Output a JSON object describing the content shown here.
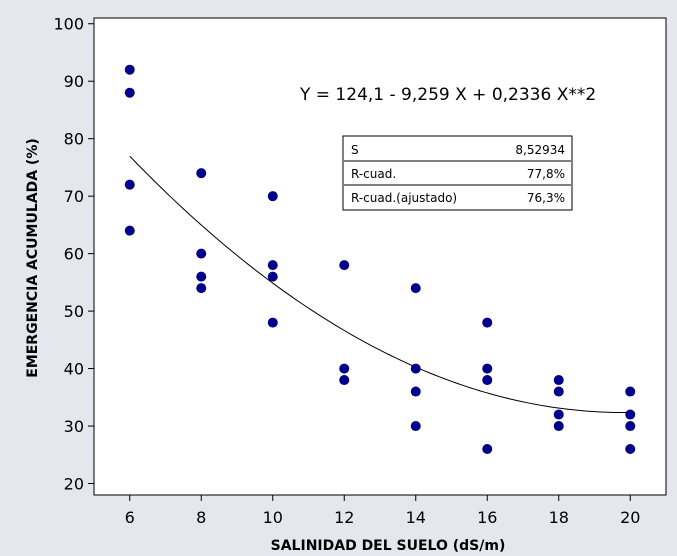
{
  "chart_data": {
    "type": "scatter",
    "xlabel": "SALINIDAD DEL SUELO (dS/m)",
    "ylabel": "EMERGENCIA ACUMULADA  (%)",
    "xlim": [
      5,
      21
    ],
    "ylim": [
      18,
      101
    ],
    "x_ticks": [
      6,
      8,
      10,
      12,
      14,
      16,
      18,
      20
    ],
    "y_ticks": [
      20,
      30,
      40,
      50,
      60,
      70,
      80,
      90,
      100
    ],
    "grid": false,
    "marker_color": "#00008B",
    "fit_line_color": "#000000",
    "points": [
      {
        "x": 6,
        "y": 92
      },
      {
        "x": 6,
        "y": 88
      },
      {
        "x": 6,
        "y": 72
      },
      {
        "x": 6,
        "y": 64
      },
      {
        "x": 8,
        "y": 74
      },
      {
        "x": 8,
        "y": 60
      },
      {
        "x": 8,
        "y": 56
      },
      {
        "x": 8,
        "y": 54
      },
      {
        "x": 10,
        "y": 70
      },
      {
        "x": 10,
        "y": 58
      },
      {
        "x": 10,
        "y": 56
      },
      {
        "x": 10,
        "y": 48
      },
      {
        "x": 12,
        "y": 58
      },
      {
        "x": 12,
        "y": 40
      },
      {
        "x": 12,
        "y": 38
      },
      {
        "x": 14,
        "y": 54
      },
      {
        "x": 14,
        "y": 40
      },
      {
        "x": 14,
        "y": 36
      },
      {
        "x": 14,
        "y": 30
      },
      {
        "x": 16,
        "y": 48
      },
      {
        "x": 16,
        "y": 40
      },
      {
        "x": 16,
        "y": 38
      },
      {
        "x": 16,
        "y": 26
      },
      {
        "x": 18,
        "y": 38
      },
      {
        "x": 18,
        "y": 36
      },
      {
        "x": 18,
        "y": 32
      },
      {
        "x": 18,
        "y": 30
      },
      {
        "x": 20,
        "y": 36
      },
      {
        "x": 20,
        "y": 32
      },
      {
        "x": 20,
        "y": 30
      },
      {
        "x": 20,
        "y": 26
      }
    ],
    "fit": {
      "equation": "Y =  124,1 - 9,259 X + 0,2336 X**2",
      "intercept": 124.1,
      "linear": -9.259,
      "quadratic": 0.2336,
      "x_range": [
        6,
        20
      ]
    },
    "stats": [
      {
        "label": "S",
        "value": "8,52934"
      },
      {
        "label": "R-cuad.",
        "value": "77,8%"
      },
      {
        "label": "R-cuad.(ajustado)",
        "value": "76,3%"
      }
    ]
  }
}
